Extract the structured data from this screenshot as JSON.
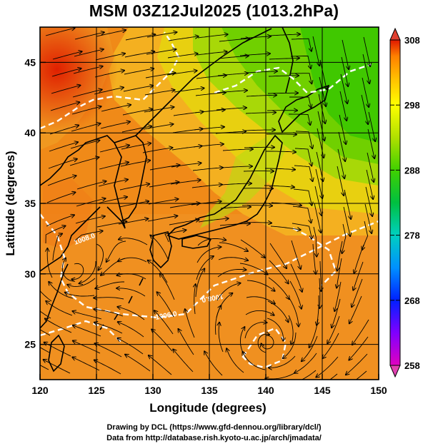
{
  "title": "MSM 03Z12Jul2025 (1013.2hPa)",
  "axes": {
    "xlabel": "Longitude (degrees)",
    "ylabel": "Latitude  (degrees)",
    "x_range": [
      120,
      150
    ],
    "y_range": [
      22.5,
      47.5
    ],
    "x_ticks": [
      "120",
      "125",
      "130",
      "135",
      "140",
      "145",
      "150"
    ],
    "y_ticks": [
      "25",
      "30",
      "35",
      "40",
      "45"
    ]
  },
  "colorbar": {
    "ticks": [
      "258",
      "268",
      "278",
      "288",
      "298",
      "308"
    ],
    "min": 258,
    "max": 308,
    "colors": [
      "#e000c0",
      "#8000ff",
      "#0020ff",
      "#0090ff",
      "#00d0c0",
      "#00c040",
      "#40d000",
      "#b0e000",
      "#ffff00",
      "#ffc000",
      "#ff8000",
      "#e01800"
    ]
  },
  "isobar_labels": [
    {
      "text": "1008.0"
    },
    {
      "text": "1008.0"
    },
    {
      "text": "1006.0"
    }
  ],
  "credits": {
    "line1": "Drawing by DCL (https://www.gfd-dennou.org/library/dcl/)",
    "line2": "Data from http://database.rish.kyoto-u.ac.jp/arch/jmadata/"
  },
  "colors": {
    "land_outline": "#000000",
    "isobar": "#ffffff",
    "streamline": "#000000",
    "grid": "#000000"
  }
}
